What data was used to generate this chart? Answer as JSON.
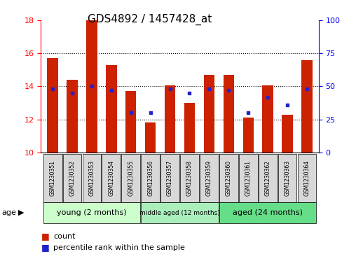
{
  "title": "GDS4892 / 1457428_at",
  "samples": [
    "GSM1230351",
    "GSM1230352",
    "GSM1230353",
    "GSM1230354",
    "GSM1230355",
    "GSM1230356",
    "GSM1230357",
    "GSM1230358",
    "GSM1230359",
    "GSM1230360",
    "GSM1230361",
    "GSM1230362",
    "GSM1230363",
    "GSM1230364"
  ],
  "counts": [
    15.7,
    14.4,
    18.0,
    15.3,
    13.7,
    11.8,
    14.05,
    13.0,
    14.7,
    14.7,
    12.1,
    14.05,
    12.3,
    15.6
  ],
  "percentiles": [
    48,
    45,
    50,
    47,
    30,
    30,
    48,
    45,
    48,
    47,
    30,
    42,
    36,
    48
  ],
  "ylim_left": [
    10,
    18
  ],
  "ylim_right": [
    0,
    100
  ],
  "yticks_left": [
    10,
    12,
    14,
    16,
    18
  ],
  "yticks_right": [
    0,
    25,
    50,
    75,
    100
  ],
  "bar_color": "#cc2200",
  "dot_color": "#2222cc",
  "group_labels": [
    "young (2 months)",
    "middle aged (12 months)",
    "aged (24 months)"
  ],
  "group_counts": [
    5,
    4,
    5
  ],
  "group_colors": [
    "#ccffcc",
    "#aaeebb",
    "#66dd88"
  ],
  "age_label": "age",
  "legend_count": "count",
  "legend_percentile": "percentile rank within the sample",
  "title_fontsize": 11,
  "tick_fontsize": 8,
  "sample_fontsize": 5.5,
  "group_fontsize": 8,
  "legend_fontsize": 8
}
